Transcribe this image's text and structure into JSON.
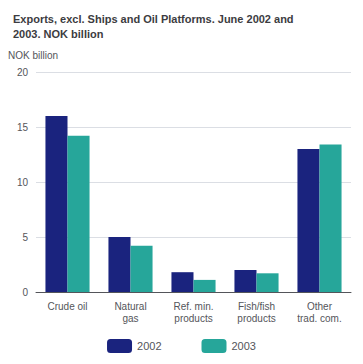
{
  "chart_data": {
    "type": "bar",
    "title": "Exports, excl. Ships and Oil Platforms. June 2002 and\n2003. NOK billion",
    "y_label": "NOK billion",
    "categories": [
      "Crude oil",
      "Natural\ngas",
      "Ref. min.\nproducts",
      "Fish/fish\nproducts",
      "Other\ntrad. com."
    ],
    "series": [
      {
        "name": "2002",
        "color": "#1a237e",
        "values": [
          16.0,
          5.0,
          1.8,
          2.0,
          13.0
        ]
      },
      {
        "name": "2003",
        "color": "#26a69a",
        "values": [
          14.2,
          4.2,
          1.1,
          1.7,
          13.4
        ]
      }
    ],
    "ylim": [
      0,
      20
    ],
    "yticks": [
      0,
      5,
      10,
      15,
      20
    ],
    "grid": true,
    "legend": "bottom"
  }
}
